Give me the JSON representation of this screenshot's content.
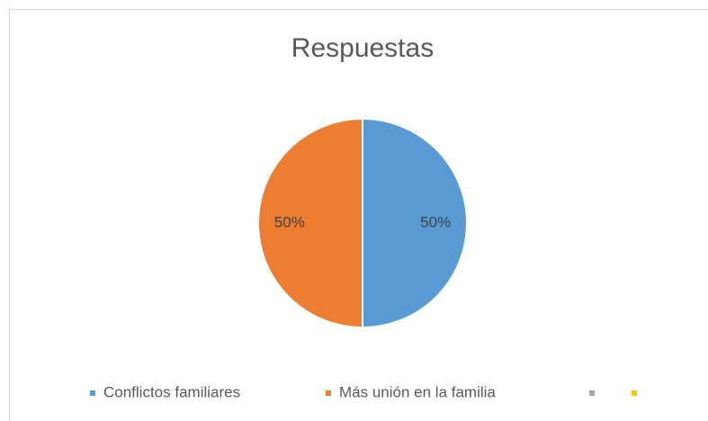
{
  "chart_data": {
    "type": "pie",
    "title": "Respuestas",
    "categories": [
      "Conflictos familiares",
      "Más unión en la familia",
      null,
      null
    ],
    "values": [
      50,
      50,
      0,
      0
    ],
    "value_labels": [
      "50%",
      "50%",
      null,
      null
    ],
    "colors": [
      "#5b9bd5",
      "#ed7d31",
      "#a5a5a5",
      "#ffc000"
    ],
    "legend": "bottom"
  }
}
